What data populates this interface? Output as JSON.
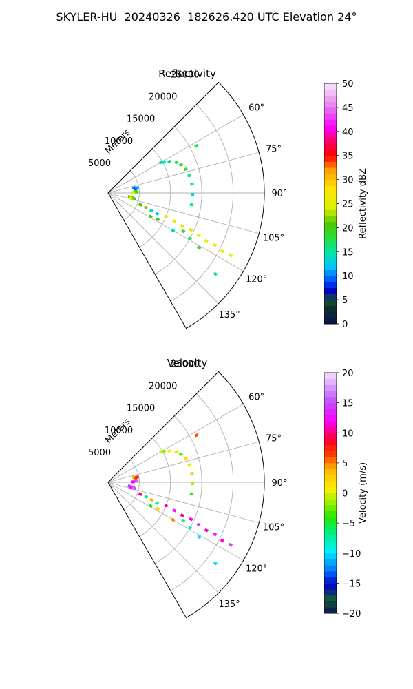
{
  "suptitle": "SKYLER-HU  20240326  182626.420 UTC Elevation 24°",
  "chart_data": [
    {
      "type": "polar-sector",
      "title": "Reflectivity",
      "radial_axis": {
        "label": "Meters",
        "ticks": [
          5000,
          10000,
          15000,
          20000,
          25000
        ],
        "max": 25000
      },
      "angular_axis": {
        "ticks": [
          "60°",
          "75°",
          "90°",
          "105°",
          "120°",
          "135°"
        ],
        "range_deg": [
          45,
          150
        ]
      },
      "colorbar": {
        "label": "Reflectivity dBZ",
        "min": 0,
        "max": 50,
        "ticks": [
          "0",
          "5",
          "10",
          "15",
          "20",
          "25",
          "30",
          "35",
          "40",
          "45",
          "50"
        ]
      },
      "grid": true,
      "returns": [
        {
          "r": 9800,
          "az": 60,
          "v": 14
        },
        {
          "r": 10200,
          "az": 61,
          "v": 15
        },
        {
          "r": 11000,
          "az": 63,
          "v": 16
        },
        {
          "r": 12000,
          "az": 66,
          "v": 17
        },
        {
          "r": 12500,
          "az": 69,
          "v": 20
        },
        {
          "r": 13000,
          "az": 73,
          "v": 18
        },
        {
          "r": 13300,
          "az": 78,
          "v": 15
        },
        {
          "r": 13500,
          "az": 84,
          "v": 14
        },
        {
          "r": 13500,
          "az": 91,
          "v": 13
        },
        {
          "r": 13500,
          "az": 98,
          "v": 15
        },
        {
          "r": 16000,
          "az": 62,
          "v": 17
        },
        {
          "r": 4200,
          "az": 79,
          "v": 10
        },
        {
          "r": 4400,
          "az": 82,
          "v": 9
        },
        {
          "r": 4700,
          "az": 80,
          "v": 11
        },
        {
          "r": 4300,
          "az": 87,
          "v": 19
        },
        {
          "r": 4600,
          "az": 88,
          "v": 21
        },
        {
          "r": 4000,
          "az": 89,
          "v": 25
        },
        {
          "r": 3500,
          "az": 100,
          "v": 20
        },
        {
          "r": 3800,
          "az": 101,
          "v": 21
        },
        {
          "r": 4100,
          "az": 102,
          "v": 19
        },
        {
          "r": 4300,
          "az": 103,
          "v": 20
        },
        {
          "r": 4000,
          "az": 104,
          "v": 22
        },
        {
          "r": 3700,
          "az": 103,
          "v": 24
        },
        {
          "r": 5500,
          "az": 110,
          "v": 21
        },
        {
          "r": 6500,
          "az": 111,
          "v": 22
        },
        {
          "r": 7500,
          "az": 112,
          "v": 13
        },
        {
          "r": 8500,
          "az": 113,
          "v": 12
        },
        {
          "r": 9000,
          "az": 118,
          "v": 20
        },
        {
          "r": 7800,
          "az": 119,
          "v": 21
        },
        {
          "r": 10000,
          "az": 112,
          "v": 24
        },
        {
          "r": 11500,
          "az": 113,
          "v": 26
        },
        {
          "r": 13000,
          "az": 114,
          "v": 25
        },
        {
          "r": 14500,
          "az": 114,
          "v": 24
        },
        {
          "r": 16000,
          "az": 115,
          "v": 26
        },
        {
          "r": 17500,
          "az": 116,
          "v": 25
        },
        {
          "r": 19000,
          "az": 116,
          "v": 27
        },
        {
          "r": 20500,
          "az": 117,
          "v": 24
        },
        {
          "r": 22000,
          "az": 117,
          "v": 26
        },
        {
          "r": 13500,
          "az": 117,
          "v": 19
        },
        {
          "r": 15000,
          "az": 119,
          "v": 17
        },
        {
          "r": 17000,
          "az": 121,
          "v": 19
        },
        {
          "r": 12000,
          "az": 120,
          "v": 14
        },
        {
          "r": 21500,
          "az": 127,
          "v": 16
        }
      ]
    },
    {
      "type": "polar-sector",
      "title": "Velocity",
      "radial_axis": {
        "label": "Meters",
        "ticks": [
          5000,
          10000,
          15000,
          20000,
          25000
        ],
        "max": 25000
      },
      "angular_axis": {
        "ticks": [
          "60°",
          "75°",
          "90°",
          "105°",
          "120°",
          "135°"
        ],
        "range_deg": [
          45,
          150
        ]
      },
      "colorbar": {
        "label": "Velocity (m/s)",
        "min": -20,
        "max": 20,
        "ticks": [
          "−20",
          "−15",
          "−10",
          "−5",
          "0",
          "5",
          "10",
          "15",
          "20"
        ]
      },
      "grid": true,
      "returns": [
        {
          "r": 9800,
          "az": 60,
          "v": 0
        },
        {
          "r": 10200,
          "az": 61,
          "v": -2
        },
        {
          "r": 11000,
          "az": 63,
          "v": 1
        },
        {
          "r": 12000,
          "az": 66,
          "v": 0
        },
        {
          "r": 12500,
          "az": 69,
          "v": -3
        },
        {
          "r": 13000,
          "az": 73,
          "v": 2
        },
        {
          "r": 13300,
          "az": 78,
          "v": 0
        },
        {
          "r": 13500,
          "az": 84,
          "v": 3
        },
        {
          "r": 13500,
          "az": 91,
          "v": -1
        },
        {
          "r": 13500,
          "az": 98,
          "v": -4
        },
        {
          "r": 16000,
          "az": 62,
          "v": 6
        },
        {
          "r": 4200,
          "az": 79,
          "v": 4
        },
        {
          "r": 4400,
          "az": 82,
          "v": 6
        },
        {
          "r": 4700,
          "az": 80,
          "v": 8
        },
        {
          "r": 4300,
          "az": 87,
          "v": 14
        },
        {
          "r": 4600,
          "az": 88,
          "v": 16
        },
        {
          "r": 4000,
          "az": 89,
          "v": 12
        },
        {
          "r": 3500,
          "az": 100,
          "v": 14
        },
        {
          "r": 3800,
          "az": 101,
          "v": 16
        },
        {
          "r": 4100,
          "az": 102,
          "v": 12
        },
        {
          "r": 4300,
          "az": 103,
          "v": 15
        },
        {
          "r": 4000,
          "az": 104,
          "v": 17
        },
        {
          "r": 3700,
          "az": 103,
          "v": 13
        },
        {
          "r": 5500,
          "az": 110,
          "v": 10
        },
        {
          "r": 6500,
          "az": 111,
          "v": -6
        },
        {
          "r": 7500,
          "az": 112,
          "v": 4
        },
        {
          "r": 8500,
          "az": 113,
          "v": -8
        },
        {
          "r": 9000,
          "az": 118,
          "v": 2
        },
        {
          "r": 7800,
          "az": 119,
          "v": -5
        },
        {
          "r": 10000,
          "az": 112,
          "v": 11
        },
        {
          "r": 11500,
          "az": 113,
          "v": 13
        },
        {
          "r": 13000,
          "az": 114,
          "v": 10
        },
        {
          "r": 14500,
          "az": 114,
          "v": 12
        },
        {
          "r": 16000,
          "az": 115,
          "v": 14
        },
        {
          "r": 17500,
          "az": 116,
          "v": 11
        },
        {
          "r": 19000,
          "az": 116,
          "v": 13
        },
        {
          "r": 20500,
          "az": 117,
          "v": 12
        },
        {
          "r": 22000,
          "az": 117,
          "v": 15
        },
        {
          "r": 13500,
          "az": 117,
          "v": -7
        },
        {
          "r": 15000,
          "az": 119,
          "v": -9
        },
        {
          "r": 17000,
          "az": 121,
          "v": -10
        },
        {
          "r": 12000,
          "az": 120,
          "v": 5
        },
        {
          "r": 21500,
          "az": 127,
          "v": -10
        }
      ]
    }
  ]
}
